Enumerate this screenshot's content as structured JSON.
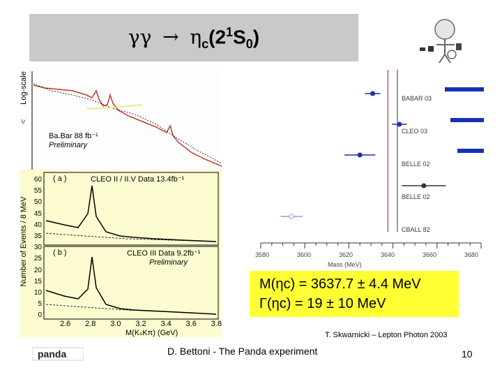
{
  "title": {
    "gamma_gamma": "γγ",
    "arrow": "→",
    "eta": "η",
    "c_sub": "c",
    "state_open": "(2",
    "superscript": "1",
    "state_s": "S",
    "zero_sub": "0",
    "state_close": ")"
  },
  "babar_plot": {
    "yaxis_label": "Log-scale",
    "label_line1": "Ba.Bar 88 fb⁻¹",
    "label_line2": "Preliminary"
  },
  "cleo_plot": {
    "panel_a_tag": "( a )",
    "panel_a_title": "CLEO II / II.V Data 13.4fb⁻¹",
    "panel_b_tag": "( b )",
    "panel_b_title": "CLEO III Data 9.2fb⁻¹",
    "panel_b_sub": "Preliminary",
    "ylabel": "Number of Events / 8 MeV",
    "xlabel": "M(KₛKπ) (GeV)",
    "yticks": [
      "60",
      "55",
      "50",
      "45",
      "40",
      "35",
      "30",
      "25",
      "20",
      "15",
      "10",
      "5",
      "0"
    ],
    "xticks": [
      "2.6",
      "2.8",
      "3.0",
      "3.2",
      "3.4",
      "3.6",
      "3.8"
    ]
  },
  "mass_comparison": {
    "experiments": [
      "BABAR 03",
      "CLEO 03",
      "BELLE 02",
      "BELLE 02",
      "CBALL 82"
    ],
    "axis_ticks": [
      "3580",
      "3600",
      "3620",
      "3640",
      "3660",
      "3680"
    ],
    "axis_label": "Mass (MeV)",
    "chart_data": {
      "type": "scatter",
      "title": "",
      "xlabel": "Mass (MeV)",
      "ylabel": "",
      "x_range": [
        3580,
        3680
      ],
      "series": [
        {
          "name": "BABAR 03",
          "value": 3630.8,
          "err": 3.5
        },
        {
          "name": "CLEO 03",
          "value": 3642.9,
          "err": 3.4
        },
        {
          "name": "BELLE 02",
          "value": 3625.0,
          "err": 7.0
        },
        {
          "name": "BELLE 02 (2)",
          "value": 3654.0,
          "err": 10.0
        },
        {
          "name": "CBALL 82",
          "value": 3594.0,
          "err": 5.0
        }
      ],
      "average_lines": [
        3637.7,
        3642.0
      ]
    }
  },
  "result": {
    "mass_line": "M(ηc) = 3637.7 ± 4.4 MeV",
    "width_line": "Γ(ηc) = 19 ± 10 MeV"
  },
  "citation": "T. Skwarnicki – Lepton Photon 2003",
  "footer": "D. Bettoni  -  The Panda experiment",
  "page_number": "10",
  "logo_text": "panda"
}
